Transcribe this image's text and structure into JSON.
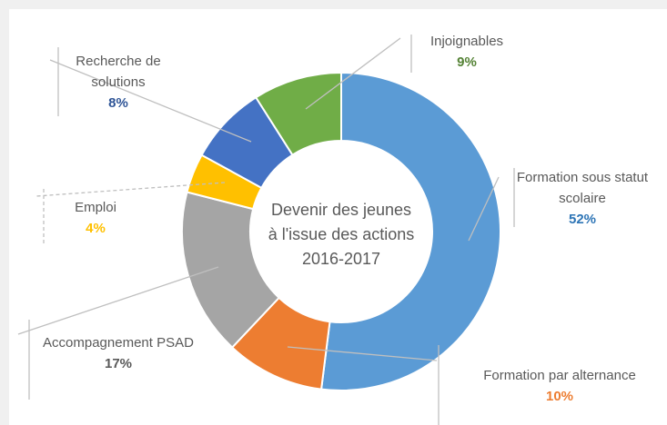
{
  "chart_data": {
    "type": "donut",
    "center_text": [
      "Devenir des jeunes",
      "à l'issue des actions",
      "2016-2017"
    ],
    "categories": [
      "Formation sous statut scolaire",
      "Formation par alternance",
      "Accompagnement PSAD",
      "Emploi",
      "Recherche de solutions",
      "Injoignables"
    ],
    "values": [
      52,
      10,
      17,
      4,
      8,
      9
    ],
    "value_labels": [
      "52%",
      "10%",
      "17%",
      "4%",
      "8%",
      "9%"
    ],
    "colors": [
      "#5b9bd5",
      "#ed7d31",
      "#a5a5a5",
      "#ffc000",
      "#4472c4",
      "#70ad47"
    ],
    "value_label_colors": [
      "#2e75b6",
      "#ed7d31",
      "#595959",
      "#ffc000",
      "#2f5597",
      "#548235"
    ]
  }
}
